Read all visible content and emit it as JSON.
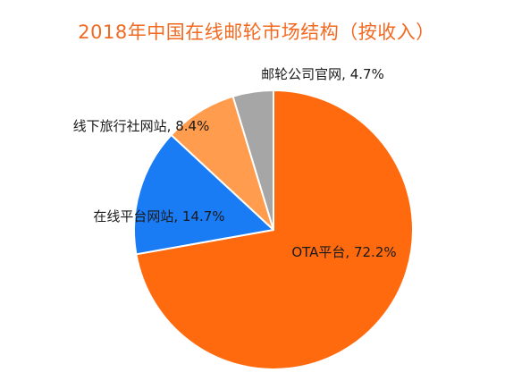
{
  "chart_data": {
    "type": "pie",
    "title": "2018年中国在线邮轮市场结构（按收入）",
    "slices": [
      {
        "name": "OTA平台",
        "value": 72.2,
        "label": "OTA平台, 72.2%",
        "color": "#ff6a0f"
      },
      {
        "name": "在线平台网站",
        "value": 14.7,
        "label": "在线平台网站, 14.7%",
        "color": "#1a7cf5"
      },
      {
        "name": "线下旅行社网站",
        "value": 8.4,
        "label": "线下旅行社网站, 8.4%",
        "color": "#ff9c4d"
      },
      {
        "name": "邮轮公司官网",
        "value": 4.7,
        "label": "邮轮公司官网, 4.7%",
        "color": "#a6a6a6"
      }
    ],
    "start": "12 o'clock",
    "direction": "clockwise",
    "legend": "none"
  }
}
